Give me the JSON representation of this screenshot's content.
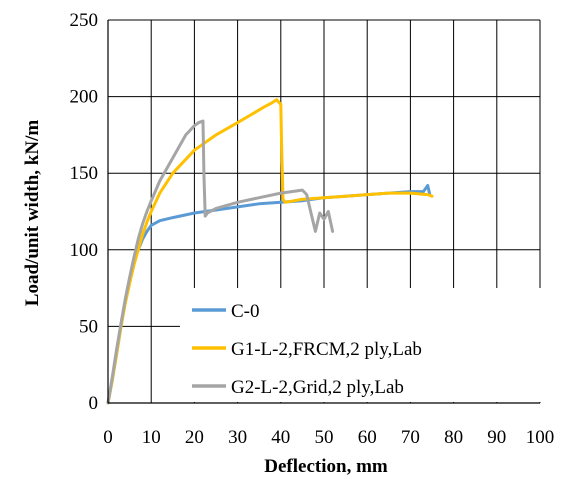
{
  "chart_data": {
    "type": "line",
    "title": "",
    "xlabel": "Deflection, mm",
    "ylabel": "Load/unit width, kN/m",
    "xlim": [
      0,
      100
    ],
    "ylim": [
      0,
      250
    ],
    "xticks": [
      0,
      10,
      20,
      30,
      40,
      50,
      60,
      70,
      80,
      90,
      100
    ],
    "yticks": [
      0,
      50,
      100,
      150,
      200,
      250
    ],
    "x_tick_labels": [
      "0",
      "10",
      "20",
      "30",
      "40",
      "50",
      "60",
      "70",
      "80",
      "90",
      "100"
    ],
    "y_tick_labels": [
      "0",
      "50",
      "100",
      "150",
      "200",
      "250"
    ],
    "grid": true,
    "legend_position": "bottom-center",
    "series": [
      {
        "name": "C-0",
        "color": "#5b9bd5",
        "x": [
          0,
          1,
          2,
          3,
          4,
          5,
          6,
          7,
          8,
          9,
          10,
          12,
          15,
          20,
          25,
          30,
          35,
          40,
          45,
          50,
          55,
          60,
          65,
          70,
          73,
          74,
          74.5
        ],
        "y": [
          0,
          15,
          32,
          50,
          66,
          80,
          92,
          100,
          107,
          112,
          116,
          119,
          121,
          124,
          126,
          128,
          130,
          131,
          132,
          134,
          135,
          136,
          137,
          138,
          138,
          142,
          136
        ]
      },
      {
        "name": "G1-L-2,FRCM,2 ply,Lab",
        "color": "#ffc000",
        "x": [
          0,
          1,
          2,
          3,
          4,
          5,
          6,
          7,
          8,
          9,
          10,
          12,
          15,
          20,
          25,
          30,
          33,
          36,
          38,
          39,
          40,
          40.2,
          40.5,
          41,
          43,
          45,
          50,
          55,
          60,
          65,
          70,
          74,
          75
        ],
        "y": [
          0,
          15,
          32,
          50,
          65,
          78,
          90,
          100,
          110,
          118,
          125,
          137,
          150,
          165,
          175,
          183,
          188,
          193,
          196,
          198,
          195,
          165,
          133,
          131,
          132,
          133,
          134,
          135,
          136,
          137,
          137,
          136,
          135
        ]
      },
      {
        "name": "G2-L-2,Grid,2 ply,Lab",
        "color": "#a5a5a5",
        "x": [
          0,
          1,
          2,
          3,
          4,
          5,
          6,
          7,
          8,
          9,
          10,
          12,
          15,
          18,
          20,
          21,
          22,
          22.2,
          22.5,
          23,
          25,
          30,
          35,
          40,
          45,
          46,
          47,
          48,
          49,
          50,
          51,
          52
        ],
        "y": [
          0,
          17,
          35,
          52,
          68,
          82,
          95,
          107,
          117,
          125,
          132,
          145,
          160,
          175,
          181,
          183,
          184,
          150,
          122,
          124,
          127,
          131,
          134,
          137,
          139,
          136,
          124,
          112,
          124,
          120,
          125,
          112
        ]
      }
    ]
  }
}
